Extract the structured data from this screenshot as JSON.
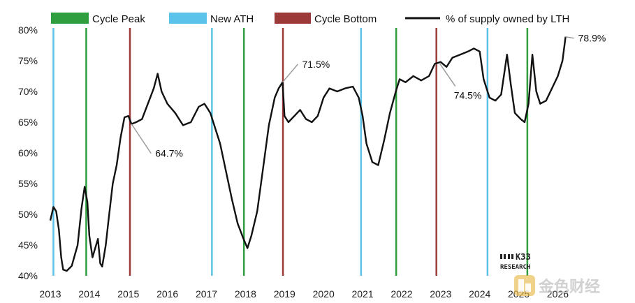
{
  "chart_data": {
    "type": "line",
    "title": "",
    "xlabel": "",
    "ylabel": "",
    "ylim": [
      40,
      80
    ],
    "xlim": [
      2013.0,
      2026.6
    ],
    "y_ticks": [
      "40%",
      "45%",
      "50%",
      "55%",
      "60%",
      "65%",
      "70%",
      "75%",
      "80%"
    ],
    "x_ticks": [
      "2013",
      "2014",
      "2015",
      "2016",
      "2017",
      "2018",
      "2019",
      "2020",
      "2021",
      "2022",
      "2023",
      "2024",
      "2025",
      "2026"
    ],
    "legend": {
      "placement": "top",
      "items": [
        {
          "name": "Cycle Peak",
          "type": "box",
          "color": "#2e9e3e"
        },
        {
          "name": "New ATH",
          "type": "box",
          "color": "#5bc3ea"
        },
        {
          "name": "Cycle Bottom",
          "type": "box",
          "color": "#9c3a3a"
        },
        {
          "name": "% of supply owned by LTH",
          "type": "line",
          "color": "#111111"
        }
      ]
    },
    "vertical_markers": [
      {
        "kind": "New ATH",
        "x": 2013.08,
        "color": "#5bc3ea"
      },
      {
        "kind": "Cycle Peak",
        "x": 2013.92,
        "color": "#2e9e3e"
      },
      {
        "kind": "Cycle Bottom",
        "x": 2015.04,
        "color": "#9c3a3a"
      },
      {
        "kind": "New ATH",
        "x": 2017.14,
        "color": "#5bc3ea"
      },
      {
        "kind": "Cycle Peak",
        "x": 2017.96,
        "color": "#2e9e3e"
      },
      {
        "kind": "Cycle Bottom",
        "x": 2018.96,
        "color": "#9c3a3a"
      },
      {
        "kind": "New ATH",
        "x": 2020.96,
        "color": "#5bc3ea"
      },
      {
        "kind": "Cycle Peak",
        "x": 2021.86,
        "color": "#2e9e3e"
      },
      {
        "kind": "Cycle Bottom",
        "x": 2022.89,
        "color": "#9c3a3a"
      },
      {
        "kind": "New ATH",
        "x": 2024.2,
        "color": "#5bc3ea"
      },
      {
        "kind": "Cycle Peak",
        "x": 2025.22,
        "color": "#2e9e3e"
      }
    ],
    "series": [
      {
        "name": "% of supply owned by LTH",
        "color": "#111111",
        "points": [
          [
            2013.0,
            49.0
          ],
          [
            2013.08,
            51.2
          ],
          [
            2013.15,
            50.5
          ],
          [
            2013.22,
            47.5
          ],
          [
            2013.28,
            43.0
          ],
          [
            2013.33,
            41.0
          ],
          [
            2013.42,
            40.8
          ],
          [
            2013.55,
            41.6
          ],
          [
            2013.7,
            45.0
          ],
          [
            2013.8,
            51.0
          ],
          [
            2013.88,
            54.5
          ],
          [
            2013.95,
            52.0
          ],
          [
            2014.0,
            46.5
          ],
          [
            2014.08,
            43.0
          ],
          [
            2014.15,
            44.5
          ],
          [
            2014.22,
            46.0
          ],
          [
            2014.28,
            42.0
          ],
          [
            2014.33,
            41.5
          ],
          [
            2014.42,
            45.0
          ],
          [
            2014.5,
            49.5
          ],
          [
            2014.6,
            55.0
          ],
          [
            2014.7,
            58.0
          ],
          [
            2014.8,
            62.5
          ],
          [
            2014.9,
            65.8
          ],
          [
            2015.0,
            66.0
          ],
          [
            2015.08,
            64.7
          ],
          [
            2015.2,
            65.0
          ],
          [
            2015.35,
            65.5
          ],
          [
            2015.5,
            68.0
          ],
          [
            2015.65,
            70.5
          ],
          [
            2015.75,
            72.9
          ],
          [
            2015.85,
            70.0
          ],
          [
            2016.0,
            68.0
          ],
          [
            2016.2,
            66.5
          ],
          [
            2016.4,
            64.5
          ],
          [
            2016.6,
            65.0
          ],
          [
            2016.8,
            67.5
          ],
          [
            2016.95,
            68.0
          ],
          [
            2017.1,
            66.5
          ],
          [
            2017.2,
            64.5
          ],
          [
            2017.35,
            61.5
          ],
          [
            2017.5,
            57.0
          ],
          [
            2017.65,
            52.5
          ],
          [
            2017.8,
            48.5
          ],
          [
            2017.95,
            46.0
          ],
          [
            2018.05,
            44.5
          ],
          [
            2018.15,
            46.5
          ],
          [
            2018.3,
            50.5
          ],
          [
            2018.45,
            57.5
          ],
          [
            2018.6,
            64.5
          ],
          [
            2018.75,
            69.0
          ],
          [
            2018.85,
            70.5
          ],
          [
            2018.95,
            71.5
          ],
          [
            2019.0,
            66.0
          ],
          [
            2019.1,
            65.0
          ],
          [
            2019.25,
            66.0
          ],
          [
            2019.4,
            67.0
          ],
          [
            2019.55,
            65.5
          ],
          [
            2019.7,
            65.0
          ],
          [
            2019.85,
            66.0
          ],
          [
            2020.0,
            69.0
          ],
          [
            2020.15,
            70.5
          ],
          [
            2020.35,
            70.0
          ],
          [
            2020.55,
            70.5
          ],
          [
            2020.75,
            70.8
          ],
          [
            2020.9,
            69.0
          ],
          [
            2021.0,
            66.0
          ],
          [
            2021.1,
            61.5
          ],
          [
            2021.25,
            58.5
          ],
          [
            2021.4,
            58.0
          ],
          [
            2021.55,
            62.0
          ],
          [
            2021.7,
            66.5
          ],
          [
            2021.85,
            70.0
          ],
          [
            2021.95,
            72.0
          ],
          [
            2022.1,
            71.5
          ],
          [
            2022.3,
            72.5
          ],
          [
            2022.5,
            71.8
          ],
          [
            2022.7,
            72.5
          ],
          [
            2022.85,
            74.5
          ],
          [
            2023.0,
            74.8
          ],
          [
            2023.15,
            74.0
          ],
          [
            2023.3,
            75.5
          ],
          [
            2023.5,
            76.0
          ],
          [
            2023.7,
            76.5
          ],
          [
            2023.85,
            77.0
          ],
          [
            2024.0,
            76.5
          ],
          [
            2024.1,
            72.0
          ],
          [
            2024.25,
            69.0
          ],
          [
            2024.4,
            68.5
          ],
          [
            2024.55,
            69.5
          ],
          [
            2024.7,
            76.0
          ],
          [
            2024.8,
            71.0
          ],
          [
            2024.9,
            66.5
          ],
          [
            2025.05,
            65.5
          ],
          [
            2025.15,
            65.0
          ],
          [
            2025.25,
            68.0
          ],
          [
            2025.35,
            76.0
          ],
          [
            2025.45,
            70.0
          ],
          [
            2025.55,
            68.0
          ],
          [
            2025.7,
            68.5
          ],
          [
            2025.85,
            70.5
          ],
          [
            2026.0,
            72.5
          ],
          [
            2026.12,
            75.0
          ],
          [
            2026.2,
            78.9
          ]
        ]
      }
    ],
    "annotations": [
      {
        "label": "64.7%",
        "x": 2015.08,
        "y": 64.7
      },
      {
        "label": "71.5%",
        "x": 2018.95,
        "y": 71.5
      },
      {
        "label": "74.5%",
        "x": 2022.98,
        "y": 74.5
      },
      {
        "label": "78.9%",
        "x": 2026.2,
        "y": 78.9
      }
    ],
    "grid": false
  },
  "branding": {
    "logo_main": "K33",
    "logo_sub": "RESEARCH",
    "watermark": "金色财经"
  }
}
